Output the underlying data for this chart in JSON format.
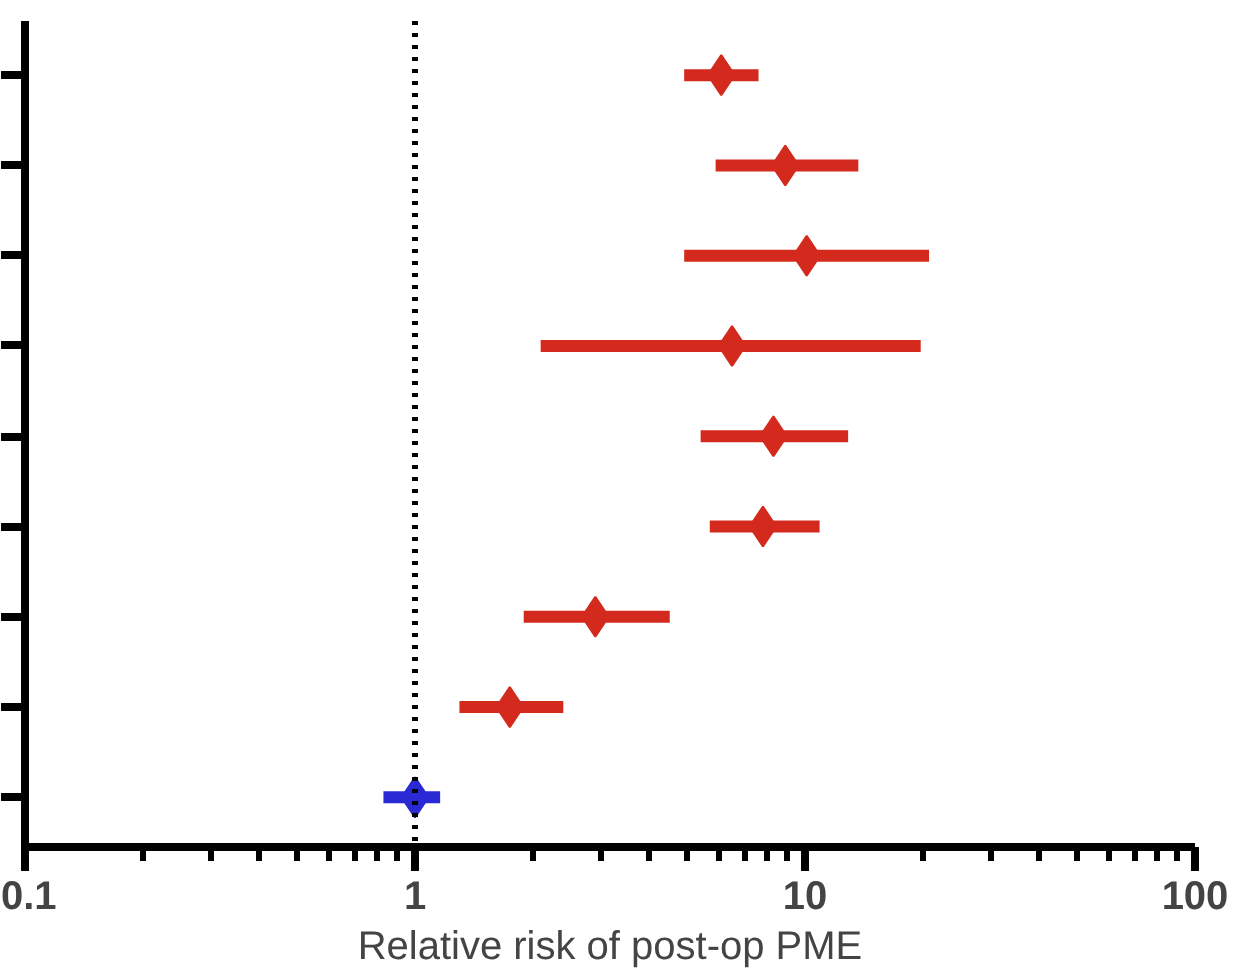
{
  "chart_data": {
    "type": "scatter",
    "orientation": "horizontal",
    "xlabel": "Relative risk of post-op PME",
    "categories": [
      null,
      null,
      null,
      null,
      null,
      null,
      null,
      null,
      null
    ],
    "values": [
      6.1,
      8.9,
      10.1,
      6.5,
      8.3,
      7.8,
      2.9,
      1.75,
      1.0
    ],
    "errors": [
      [
        4.9,
        7.6
      ],
      [
        5.9,
        13.7
      ],
      [
        4.9,
        20.8
      ],
      [
        2.1,
        19.8
      ],
      [
        5.4,
        12.9
      ],
      [
        5.7,
        10.9
      ],
      [
        1.9,
        4.5
      ],
      [
        1.3,
        2.4
      ],
      [
        0.83,
        1.16
      ]
    ],
    "colors": [
      "#d42a1e",
      "#d42a1e",
      "#d42a1e",
      "#d42a1e",
      "#d42a1e",
      "#d42a1e",
      "#d42a1e",
      "#d42a1e",
      "#2a2ad4"
    ],
    "marker": "diamond",
    "log": "x",
    "xlim": [
      0.1,
      100
    ],
    "xticks": [
      0.1,
      {
        "value": 0.2,
        "label": null
      },
      {
        "value": 0.3,
        "label": null
      },
      {
        "value": 0.4,
        "label": null
      },
      {
        "value": 0.5,
        "label": null
      },
      {
        "value": 0.6,
        "label": null
      },
      {
        "value": 0.7,
        "label": null
      },
      {
        "value": 0.8,
        "label": null
      },
      {
        "value": 0.9,
        "label": null
      },
      1,
      {
        "value": 2,
        "label": null
      },
      {
        "value": 3,
        "label": null
      },
      {
        "value": 4,
        "label": null
      },
      {
        "value": 5,
        "label": null
      },
      {
        "value": 6,
        "label": null
      },
      {
        "value": 7,
        "label": null
      },
      {
        "value": 8,
        "label": null
      },
      {
        "value": 9,
        "label": null
      },
      10,
      {
        "value": 20,
        "label": null
      },
      {
        "value": 30,
        "label": null
      },
      {
        "value": 40,
        "label": null
      },
      {
        "value": 50,
        "label": null
      },
      {
        "value": 60,
        "label": null
      },
      {
        "value": 70,
        "label": null
      },
      {
        "value": 80,
        "label": null
      },
      {
        "value": 90,
        "label": null
      },
      100
    ],
    "ref_lines": [
      {
        "axis": "x",
        "value": 1,
        "color": "#000000",
        "line_style": "dotted"
      }
    ],
    "tick_labels": "x",
    "grid": false
  }
}
